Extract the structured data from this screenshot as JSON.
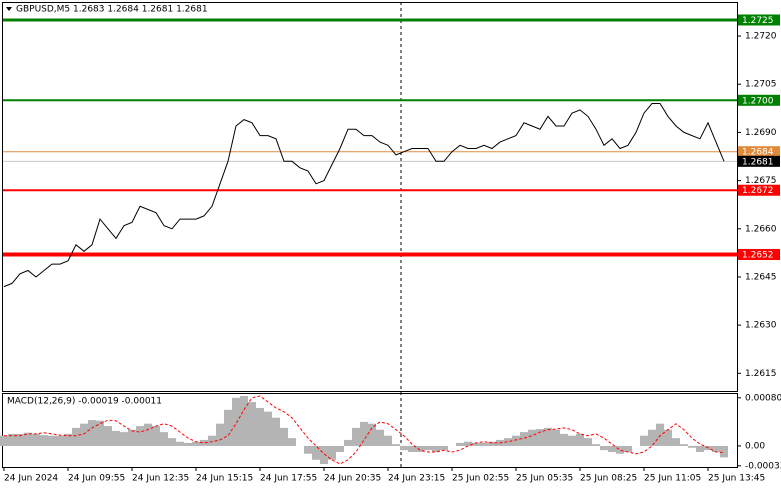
{
  "chart_data": [
    {
      "type": "line",
      "title": "GBPUSD,M5  1.2683 1.2684 1.2681 1.2681",
      "categories": [
        "24 Jun 2024",
        null,
        null,
        null,
        null,
        null,
        null,
        null,
        "24 Jun 09:55",
        null,
        null,
        null,
        null,
        null,
        null,
        null,
        "24 Jun 12:35",
        null,
        null,
        null,
        null,
        null,
        null,
        null,
        "24 Jun 15:15",
        null,
        null,
        null,
        null,
        null,
        null,
        null,
        "24 Jun 17:55",
        null,
        null,
        null,
        null,
        null,
        null,
        null,
        "24 Jun 20:35",
        null,
        null,
        null,
        null,
        null,
        null,
        null,
        "24 Jun 23:15",
        null,
        null,
        null,
        null,
        null,
        null,
        null,
        "25 Jun 02:55",
        null,
        null,
        null,
        null,
        null,
        null,
        null,
        "25 Jun 05:35",
        null,
        null,
        null,
        null,
        null,
        null,
        null,
        "25 Jun 08:25",
        null,
        null,
        null,
        null,
        null,
        null,
        null,
        "25 Jun 11:05",
        null,
        null,
        null,
        null,
        null,
        null,
        null,
        "25 Jun 13:45",
        null,
        null
      ],
      "values": [
        1.2642,
        1.2643,
        1.2646,
        1.2647,
        1.2645,
        1.2647,
        1.2649,
        1.2649,
        1.265,
        1.2655,
        1.2653,
        1.2655,
        1.2663,
        1.266,
        1.2657,
        1.2661,
        1.2662,
        1.2667,
        1.2666,
        1.2665,
        1.2661,
        1.266,
        1.2663,
        1.2663,
        1.2663,
        1.2664,
        1.2667,
        1.2674,
        1.2681,
        1.2692,
        1.2694,
        1.2693,
        1.2689,
        1.2689,
        1.2688,
        1.2681,
        1.2681,
        1.2679,
        1.2678,
        1.2674,
        1.2675,
        1.268,
        1.2685,
        1.2691,
        1.2691,
        1.2689,
        1.2689,
        1.2687,
        1.2686,
        1.2683,
        1.2684,
        1.2685,
        1.2685,
        1.2685,
        1.2681,
        1.2681,
        1.2684,
        1.2686,
        1.2685,
        1.2685,
        1.2686,
        1.2685,
        1.2687,
        1.2688,
        1.2689,
        1.2693,
        1.2692,
        1.2691,
        1.2695,
        1.2692,
        1.2692,
        1.2696,
        1.2697,
        1.2695,
        1.2691,
        1.2686,
        1.2688,
        1.2685,
        1.2686,
        1.269,
        1.2696,
        1.2699,
        1.2699,
        1.2695,
        1.2692,
        1.269,
        1.2689,
        1.2688,
        1.2693,
        1.2687,
        1.2681
      ],
      "color": "#000000",
      "ylim": [
        1.26095,
        1.27306
      ],
      "yticks": [
        {
          "value": 1.272,
          "label": "1.2720"
        },
        1.2705,
        {
          "value": 1.269,
          "label": "1.2690"
        },
        1.2675,
        {
          "value": 1.266,
          "label": "1.2660"
        },
        1.2645,
        {
          "value": 1.263,
          "label": "1.2630"
        },
        1.2615
      ],
      "levels": [
        {
          "value": 1.2725,
          "color": "#008000",
          "width": 3
        },
        {
          "value": 1.27,
          "label": "1.2700",
          "color": "#008000",
          "width": 2
        },
        {
          "value": 1.2684,
          "color": "#e08a3c",
          "width": 1
        },
        {
          "value": 1.2681,
          "color": "#000000",
          "line_color": "#c8c8c8",
          "width": 1
        },
        {
          "value": 1.2672,
          "color": "#ff0000",
          "width": 2
        },
        {
          "value": 1.2652,
          "color": "#ff0000",
          "width": 4
        }
      ]
    },
    {
      "type": "macd",
      "title": "MACD(12,26,9) -0.00019 -0.00011",
      "series": [
        {
          "style": "histogram",
          "color": "#b4b4b4",
          "values": [
            0.00017,
            0.0002,
            0.0002,
            0.00022,
            0.0002,
            0.00018,
            0.00017,
            0.00017,
            0.0002,
            0.0003,
            0.00037,
            0.00043,
            0.00042,
            0.00033,
            0.00025,
            0.00023,
            0.00027,
            0.00033,
            0.00037,
            0.00033,
            0.00023,
            0.00013,
            7e-05,
            5e-05,
            7e-05,
            0.0001,
            0.00017,
            0.00037,
            0.0006,
            0.0008,
            0.00083,
            0.00073,
            0.00063,
            0.00057,
            0.00047,
            0.0003,
            0.00013,
            0,
            -0.00013,
            -0.00023,
            -0.0003,
            -0.00023,
            -0.0001,
            0.0001,
            0.0003,
            0.0004,
            0.00037,
            0.00027,
            0.00017,
            3e-05,
            -7e-05,
            -0.0001,
            -0.0001,
            -7e-05,
            -0.0001,
            -7e-05,
            0,
            5e-05,
            7e-05,
            5e-05,
            5e-05,
            7e-05,
            0.0001,
            0.00013,
            0.00017,
            0.00023,
            0.00027,
            0.00028,
            0.0003,
            0.00027,
            0.0002,
            0.00017,
            0.0002,
            0.00013,
            3e-05,
            -7e-05,
            -0.0001,
            -0.00013,
            -0.0001,
            0,
            0.00017,
            0.00027,
            0.00037,
            0.00027,
            0.00013,
            3e-05,
            -3e-05,
            -0.0001,
            -7e-05,
            -0.0001,
            -0.00019
          ]
        },
        {
          "style": "dashed",
          "color": "#ff0000",
          "values": [
            0.00017,
            0.00017,
            0.00017,
            0.0002,
            0.0002,
            0.00022,
            0.0002,
            0.00018,
            0.00017,
            0.00017,
            0.0002,
            0.0003,
            0.00037,
            0.00043,
            0.00042,
            0.00033,
            0.00025,
            0.00023,
            0.00027,
            0.00033,
            0.00037,
            0.00033,
            0.00023,
            0.00013,
            7e-05,
            5e-05,
            7e-05,
            0.0001,
            0.00017,
            0.00037,
            0.0006,
            0.0008,
            0.00083,
            0.00073,
            0.00063,
            0.00057,
            0.00047,
            0.0003,
            0.00013,
            0,
            -0.00013,
            -0.00023,
            -0.0003,
            -0.00023,
            -0.0001,
            0.0001,
            0.0003,
            0.0004,
            0.00037,
            0.00027,
            0.00017,
            3e-05,
            -7e-05,
            -0.0001,
            -0.0001,
            -7e-05,
            -0.0001,
            -7e-05,
            0,
            5e-05,
            7e-05,
            5e-05,
            5e-05,
            7e-05,
            0.0001,
            0.00013,
            0.00017,
            0.00023,
            0.00027,
            0.00028,
            0.0003,
            0.00027,
            0.0002,
            0.00017,
            0.0002,
            0.00013,
            3e-05,
            -7e-05,
            -0.0001,
            -0.00013,
            -0.0001,
            0,
            0.00017,
            0.00027,
            0.00037,
            0.00027,
            0.00013,
            3e-05,
            -3e-05,
            -0.0001,
            -0.00011
          ]
        }
      ],
      "ylim": [
        -0.00035,
        0.00088
      ],
      "yticks": [
        {
          "value": 0.0008,
          "label": "0.00080"
        },
        {
          "value": 0,
          "label": "0.00"
        },
        -0.00033
      ]
    }
  ]
}
